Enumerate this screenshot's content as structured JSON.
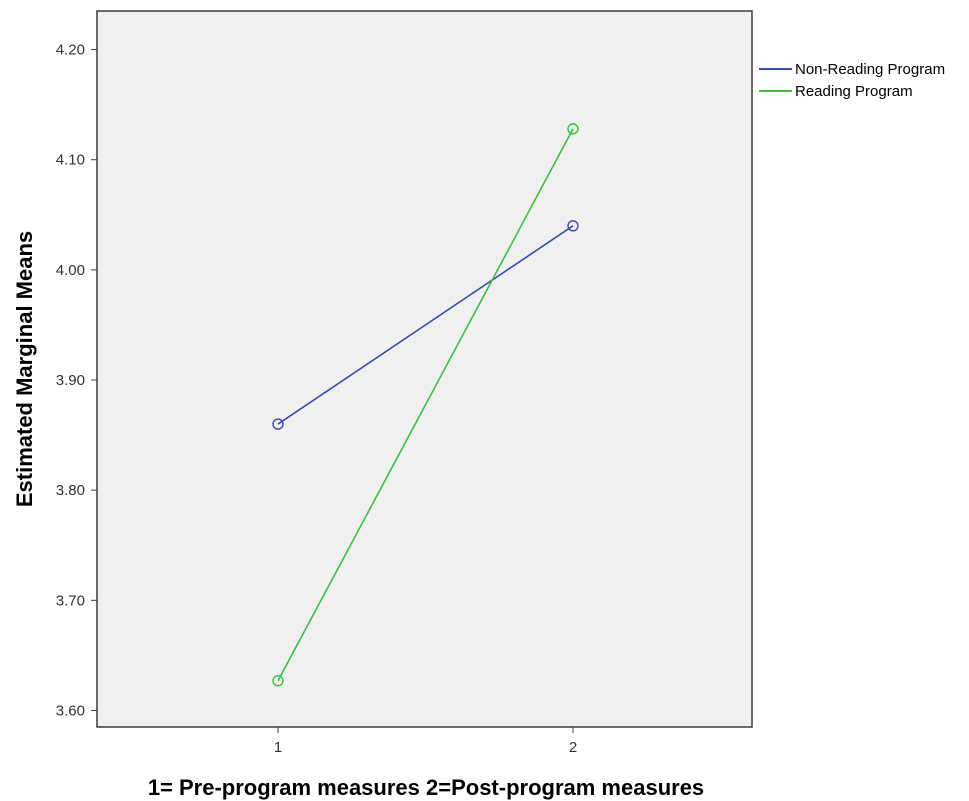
{
  "chart_data": {
    "type": "line",
    "xlabel": "1= Pre-program measures  2=Post-program measures",
    "ylabel": "Estimated Marginal Means",
    "categories": [
      "1",
      "2"
    ],
    "yticks": [
      "3.60",
      "3.70",
      "3.80",
      "3.90",
      "4.00",
      "4.10",
      "4.20"
    ],
    "ylim": [
      3.585,
      4.235
    ],
    "grid": false,
    "legend_position": "outside-top-right",
    "plot_background": "#f0f0f0",
    "series": [
      {
        "name": "Non-Reading Program",
        "values": [
          3.86,
          4.04
        ],
        "color": "#3a4aa8",
        "marker": "open-circle"
      },
      {
        "name": "Reading Program",
        "values": [
          3.627,
          4.128
        ],
        "color": "#3cbf3c",
        "marker": "open-circle"
      }
    ]
  }
}
